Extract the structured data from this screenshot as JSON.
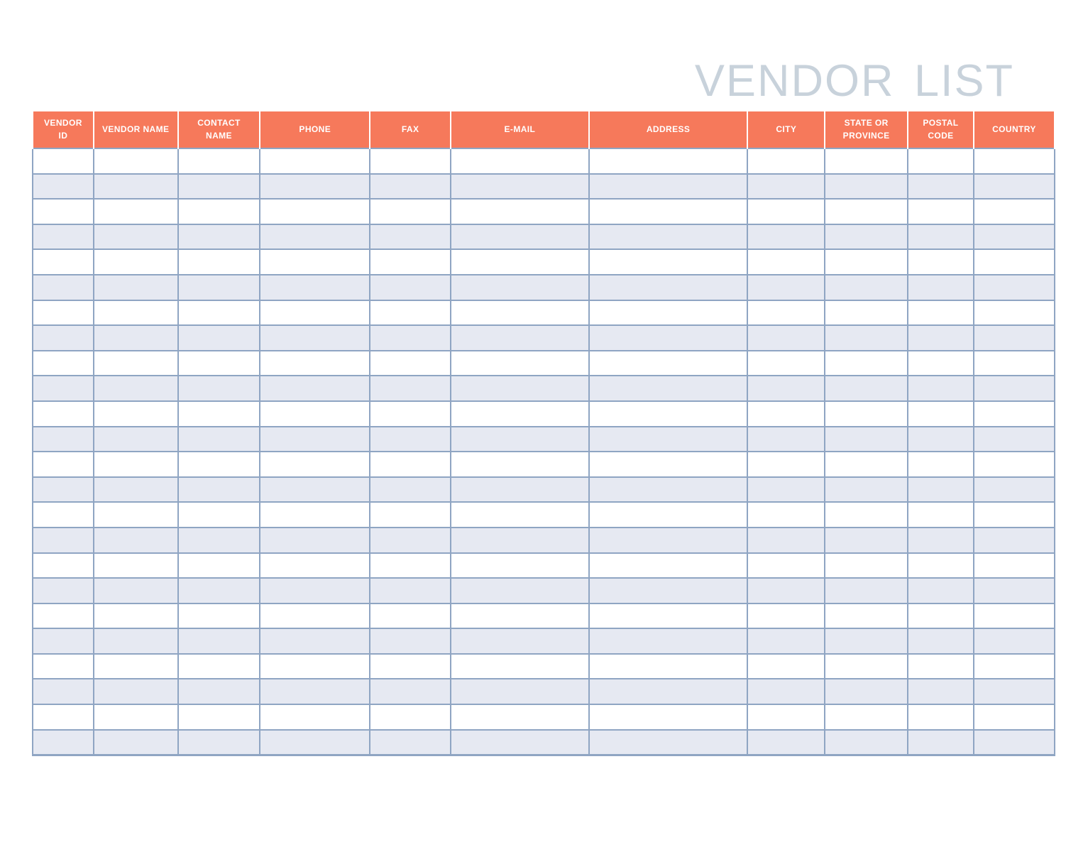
{
  "header": {
    "title": "VENDOR LIST"
  },
  "table": {
    "columns": [
      {
        "label": "VENDOR ID"
      },
      {
        "label": "VENDOR NAME"
      },
      {
        "label": "CONTACT NAME"
      },
      {
        "label": "PHONE"
      },
      {
        "label": "FAX"
      },
      {
        "label": "E-MAIL"
      },
      {
        "label": "ADDRESS"
      },
      {
        "label": "CITY"
      },
      {
        "label": "STATE OR PROVINCE"
      },
      {
        "label": "POSTAL CODE"
      },
      {
        "label": "COUNTRY"
      }
    ],
    "row_count": 24,
    "cells": "empty"
  },
  "colors": {
    "header_bg": "#F6795B",
    "header_text": "#FFFFFF",
    "grid_border": "#8FA5C3",
    "row_alt_bg": "#E6E9F2",
    "title_text": "#C8D2DB",
    "page_bg": "#FFFFFF"
  }
}
